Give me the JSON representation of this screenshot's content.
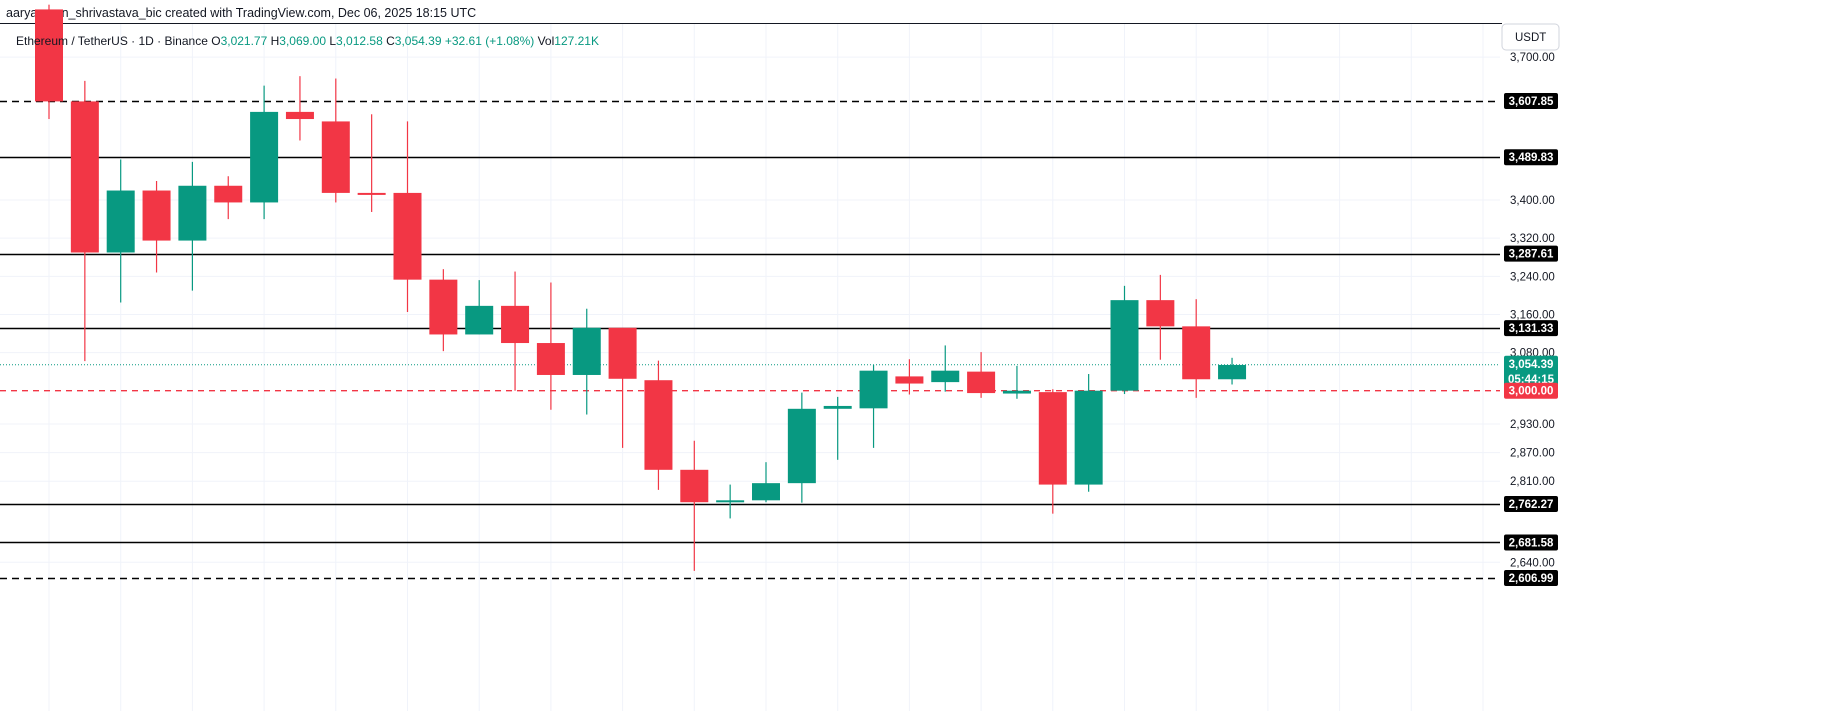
{
  "header": {
    "credit": "aaryamann_shrivastava_bic created with TradingView.com, Dec 06, 2025 18:15 UTC"
  },
  "legend": {
    "symbol": "Ethereum / TetherUS · 1D · Binance",
    "open_label": "O",
    "open_value": "3,021.77",
    "high_label": "H",
    "high_value": "3,069.00",
    "low_label": "L",
    "low_value": "3,012.58",
    "close_label": "C",
    "close_value": "3,054.39",
    "change": "+32.61 (+1.08%)",
    "vol_label": "Vol",
    "vol_value": "127.21K"
  },
  "colors": {
    "up": "#089981",
    "down": "#f23645",
    "grid": "#f0f3fa",
    "text": "#131722"
  },
  "chart_data": {
    "type": "candlestick",
    "currency": "USDT",
    "ylim": [
      2560,
      3760
    ],
    "y_ticks": [
      "3,700.00",
      "3,400.00",
      "3,320.00",
      "3,240.00",
      "3,160.00",
      "3,080.00",
      "2,930.00",
      "2,870.00",
      "2,810.00",
      "2,640.00"
    ],
    "candles": [
      {
        "o": 3800,
        "h": 3810,
        "l": 3570,
        "c": 3607
      },
      {
        "o": 3607,
        "h": 3650,
        "l": 3062,
        "c": 3290
      },
      {
        "o": 3290,
        "h": 3485,
        "l": 3185,
        "c": 3420
      },
      {
        "o": 3420,
        "h": 3440,
        "l": 3248,
        "c": 3315
      },
      {
        "o": 3315,
        "h": 3480,
        "l": 3210,
        "c": 3430
      },
      {
        "o": 3430,
        "h": 3450,
        "l": 3360,
        "c": 3395
      },
      {
        "o": 3395,
        "h": 3640,
        "l": 3360,
        "c": 3585
      },
      {
        "o": 3585,
        "h": 3660,
        "l": 3525,
        "c": 3570
      },
      {
        "o": 3565,
        "h": 3655,
        "l": 3395,
        "c": 3415
      },
      {
        "o": 3415,
        "h": 3580,
        "l": 3375,
        "c": 3413
      },
      {
        "o": 3415,
        "h": 3565,
        "l": 3165,
        "c": 3233
      },
      {
        "o": 3233,
        "h": 3255,
        "l": 3083,
        "c": 3118
      },
      {
        "o": 3118,
        "h": 3232,
        "l": 3118,
        "c": 3178
      },
      {
        "o": 3178,
        "h": 3250,
        "l": 3000,
        "c": 3100
      },
      {
        "o": 3100,
        "h": 3227,
        "l": 2960,
        "c": 3033
      },
      {
        "o": 3033,
        "h": 3172,
        "l": 2950,
        "c": 3132
      },
      {
        "o": 3132,
        "h": 3132,
        "l": 2880,
        "c": 3025
      },
      {
        "o": 3022,
        "h": 3063,
        "l": 2792,
        "c": 2834
      },
      {
        "o": 2834,
        "h": 2895,
        "l": 2622,
        "c": 2766
      },
      {
        "o": 2766,
        "h": 2803,
        "l": 2732,
        "c": 2770
      },
      {
        "o": 2770,
        "h": 2850,
        "l": 2766,
        "c": 2806
      },
      {
        "o": 2806,
        "h": 2996,
        "l": 2765,
        "c": 2962
      },
      {
        "o": 2962,
        "h": 2987,
        "l": 2855,
        "c": 2968
      },
      {
        "o": 2963,
        "h": 3054,
        "l": 2880,
        "c": 3042
      },
      {
        "o": 3030,
        "h": 3066,
        "l": 2992,
        "c": 3015
      },
      {
        "o": 3018,
        "h": 3095,
        "l": 2998,
        "c": 3042
      },
      {
        "o": 3040,
        "h": 3081,
        "l": 2985,
        "c": 2995
      },
      {
        "o": 2994,
        "h": 3052,
        "l": 2983,
        "c": 3000
      },
      {
        "o": 2997,
        "h": 3003,
        "l": 2742,
        "c": 2803
      },
      {
        "o": 2803,
        "h": 3035,
        "l": 2788,
        "c": 3000
      },
      {
        "o": 3000,
        "h": 3220,
        "l": 2993,
        "c": 3190
      },
      {
        "o": 3190,
        "h": 3243,
        "l": 3065,
        "c": 3135
      },
      {
        "o": 3135,
        "h": 3192,
        "l": 2985,
        "c": 3024
      },
      {
        "o": 3024,
        "h": 3069,
        "l": 3013,
        "c": 3054
      }
    ],
    "levels": [
      {
        "value": 3607.85,
        "label": "3,607.85",
        "style": "dashed"
      },
      {
        "value": 3489.83,
        "label": "3,489.83",
        "style": "solid"
      },
      {
        "value": 3287.61,
        "label": "3,287.61",
        "style": "solid"
      },
      {
        "value": 3131.33,
        "label": "3,131.33",
        "style": "solid"
      },
      {
        "value": 2762.27,
        "label": "2,762.27",
        "style": "solid"
      },
      {
        "value": 2681.58,
        "label": "2,681.58",
        "style": "solid"
      },
      {
        "value": 2606.99,
        "label": "2,606.99",
        "style": "dashed"
      }
    ],
    "price_line": {
      "value": 3054.39,
      "label": "3,054.39",
      "countdown": "05:44:15"
    },
    "red_line": {
      "value": 3000.0,
      "label": "3,000.00"
    }
  }
}
